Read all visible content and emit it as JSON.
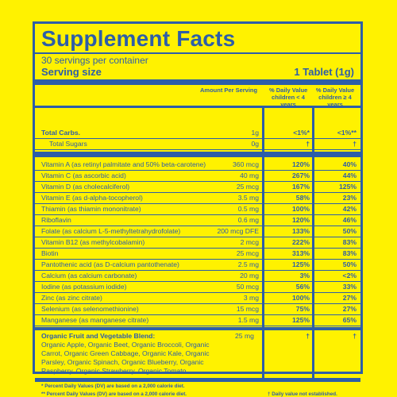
{
  "label": {
    "title": "Supplement Facts",
    "servings": "30 servings per container",
    "serving_size_label": "Serving size",
    "serving_size_value": "1 Tablet (1g)",
    "col_amount": "Amount Per Serving",
    "col_dv_child": [
      "% Daily Value",
      "children < 4",
      "years"
    ],
    "col_dv_adult": [
      "% Daily Value",
      "children ≥ 4",
      "years"
    ]
  },
  "rows": [
    {
      "name": "Total Carbs.",
      "amount": "1g",
      "dv1": "<1%*",
      "dv2": "<1%**",
      "style": "bold"
    },
    {
      "name": "Total Sugars",
      "amount": "0g",
      "dv1": "†",
      "dv2": "†",
      "style": "indent"
    },
    {
      "name": "Vitamin A (as retinyl palmitate and 50% beta-carotene)",
      "amount": "360 mcg",
      "dv1": "120%",
      "dv2": "40%"
    },
    {
      "name": "Vitamin C (as ascorbic acid)",
      "amount": "40 mg",
      "dv1": "267%",
      "dv2": "44%"
    },
    {
      "name": "Vitamin D (as cholecalciferol)",
      "amount": "25 mcg",
      "dv1": "167%",
      "dv2": "125%"
    },
    {
      "name": "Vitamin E (as d-alpha-tocopherol)",
      "amount": "3.5 mg",
      "dv1": "58%",
      "dv2": "23%"
    },
    {
      "name": "Thiamin (as thiamin mononitrate)",
      "amount": "0.5 mg",
      "dv1": "100%",
      "dv2": "42%"
    },
    {
      "name": "Riboflavin",
      "amount": "0.6 mg",
      "dv1": "120%",
      "dv2": "46%"
    },
    {
      "name": "Folate (as calcium L-5-methyltetrahydrofolate)",
      "amount": "200 mcg DFE",
      "dv1": "133%",
      "dv2": "50%"
    },
    {
      "name": "Vitamin B12 (as methylcobalamin)",
      "amount": "2 mcg",
      "dv1": "222%",
      "dv2": "83%"
    },
    {
      "name": "Biotin",
      "amount": "25 mcg",
      "dv1": "313%",
      "dv2": "83%"
    },
    {
      "name": "Pantothenic acid (as D-calcium pantothenate)",
      "amount": "2.5 mg",
      "dv1": "125%",
      "dv2": "50%"
    },
    {
      "name": "Calcium (as calcium carbonate)",
      "amount": "20 mg",
      "dv1": "3%",
      "dv2": "<2%"
    },
    {
      "name": "Iodine (as potassium iodide)",
      "amount": "50 mcg",
      "dv1": "56%",
      "dv2": "33%"
    },
    {
      "name": "Zinc (as zinc citrate)",
      "amount": "3 mg",
      "dv1": "100%",
      "dv2": "27%"
    },
    {
      "name": "Selenium (as selenomethionine)",
      "amount": "15 mcg",
      "dv1": "75%",
      "dv2": "27%"
    },
    {
      "name": "Manganese (as manganese citrate)",
      "amount": "1.5 mg",
      "dv1": "125%",
      "dv2": "65%"
    }
  ],
  "blend": {
    "title": "Organic Fruit and Vegetable Blend:",
    "text": "Organic Apple, Organic Beet, Organic Broccoli, Organic Carrot, Organic Green Cabbage, Organic Kale, Organic Parsley, Organic Spinach, Organic Blueberry, Organic Raspberry, Organic Strawberry, Organic Tomato.",
    "amount": "25 mg",
    "dv1": "†",
    "dv2": "†"
  },
  "footnotes": {
    "f1": "* Percent Daily Values (DV) are based on a 2,000 calorie diet.",
    "f2": "** Percent Daily Values (DV) are based on a 2,000 calorie diet.",
    "f3": "† Daily value not established."
  },
  "colors": {
    "background": "#fff200",
    "ink": "#2d5ea8"
  }
}
